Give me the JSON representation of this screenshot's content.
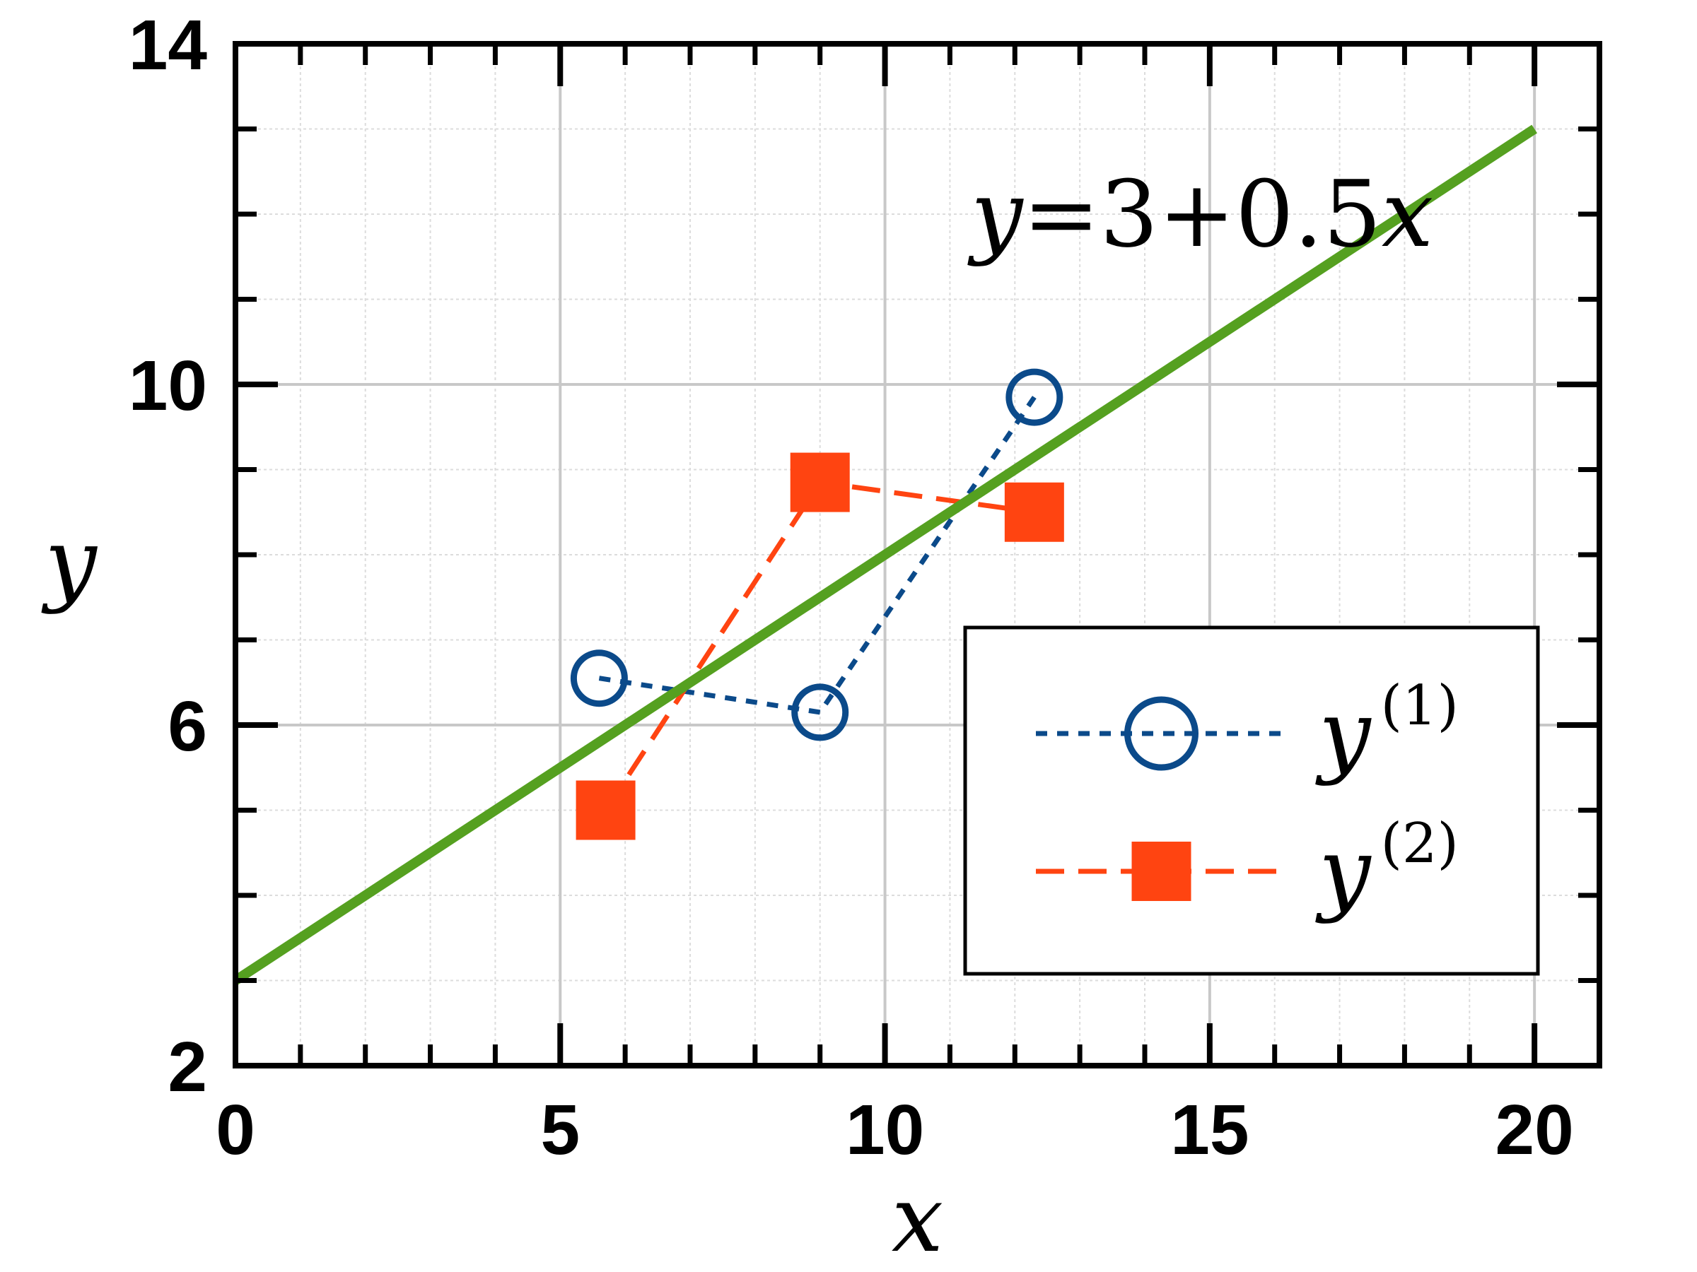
{
  "chart_data": {
    "type": "line",
    "xlabel": "x",
    "ylabel": "y",
    "xlim": [
      0,
      21
    ],
    "ylim": [
      2,
      14
    ],
    "x_ticks": [
      0,
      5,
      10,
      15,
      20
    ],
    "x_tick_labels": [
      "0",
      "5",
      "10",
      "15",
      "20"
    ],
    "y_ticks": [
      2,
      6,
      10,
      14
    ],
    "y_tick_labels": [
      "2",
      "6",
      "10",
      "14"
    ],
    "grid": true,
    "legend_position": "bottom-right",
    "annotation": {
      "text_var": "y",
      "text_rest": "=3+0.5",
      "text_var2": "x",
      "x": 13.5,
      "y": 12.0
    },
    "series": [
      {
        "name": "y",
        "superscript": "(1)",
        "color": "#0b4a8a",
        "marker": "circle-open",
        "line_style": "dotted",
        "x": [
          5.6,
          9.0,
          12.3
        ],
        "y": [
          6.55,
          6.15,
          9.85
        ]
      },
      {
        "name": "y",
        "superscript": "(2)",
        "color": "#ff4411",
        "marker": "square-filled",
        "line_style": "dashed",
        "x": [
          5.7,
          9.0,
          12.3
        ],
        "y": [
          5.0,
          8.85,
          8.5
        ]
      },
      {
        "name": "",
        "color": "#55a020",
        "marker": "none",
        "line_style": "solid",
        "x": [
          0,
          20
        ],
        "y": [
          3,
          13
        ]
      }
    ]
  }
}
